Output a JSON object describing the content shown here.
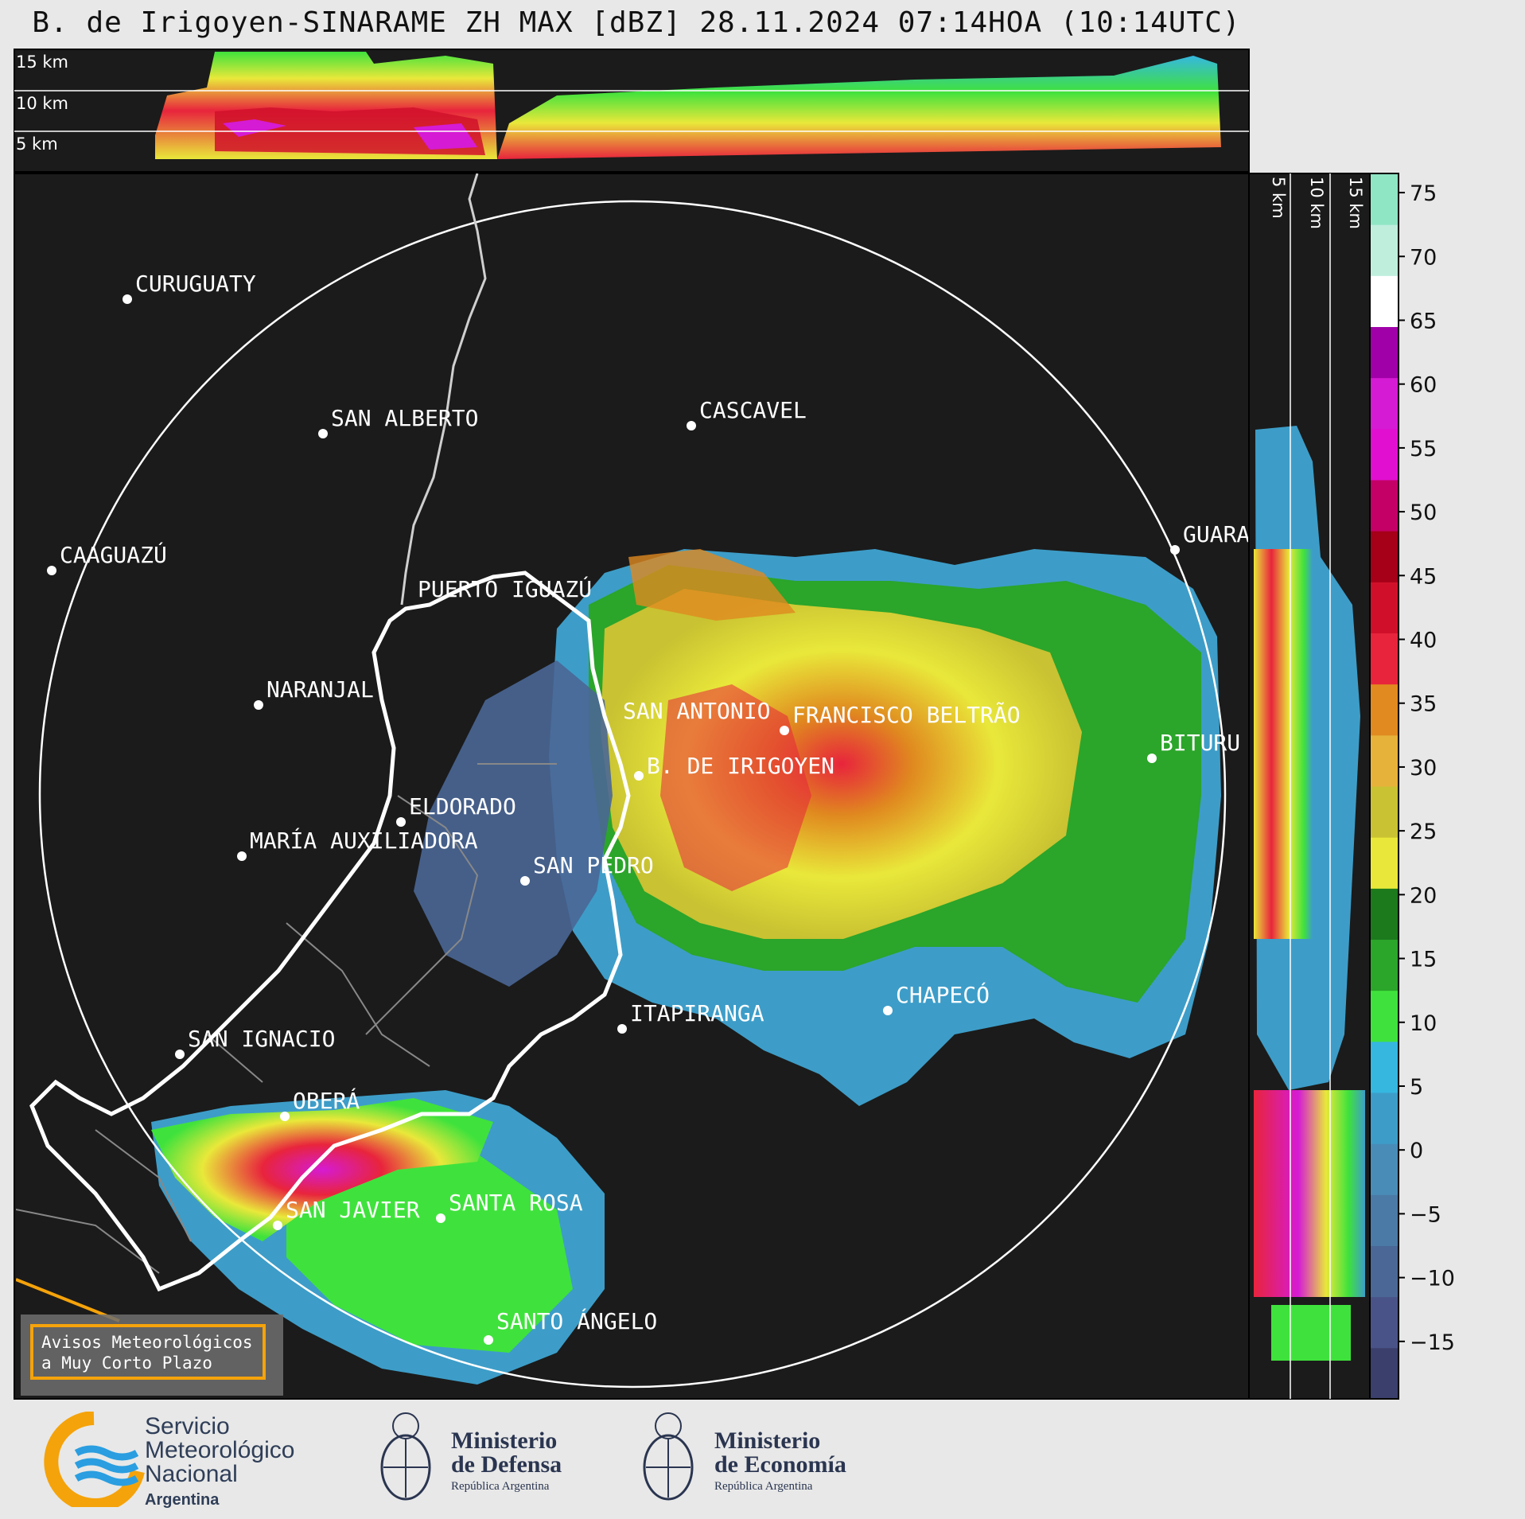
{
  "title": "B. de Irigoyen-SINARAME ZH MAX [dBZ] 28.11.2024 07:14HOA (10:14UTC)",
  "height_labels_top": [
    "15 km",
    "10 km",
    "5 km"
  ],
  "height_labels_side": [
    "5 km",
    "10 km",
    "15 km"
  ],
  "colorbar": {
    "ticks": [
      "75",
      "70",
      "65",
      "60",
      "55",
      "50",
      "45",
      "40",
      "35",
      "30",
      "25",
      "20",
      "15",
      "10",
      "5",
      "0",
      "−5",
      "−10",
      "−15"
    ]
  },
  "cities": [
    {
      "name": "CURUGUATY"
    },
    {
      "name": "SAN ALBERTO"
    },
    {
      "name": "CASCAVEL"
    },
    {
      "name": "CAAGUAZÚ"
    },
    {
      "name": "GUARA"
    },
    {
      "name": "PUERTO IGUAZÚ"
    },
    {
      "name": "NARANJAL"
    },
    {
      "name": "SAN ANTONIO"
    },
    {
      "name": "FRANCISCO BELTRÃO"
    },
    {
      "name": "BITURU"
    },
    {
      "name": "B. DE IRIGOYEN"
    },
    {
      "name": "ELDORADO"
    },
    {
      "name": "MARÍA AUXILIADORA"
    },
    {
      "name": "SAN PEDRO"
    },
    {
      "name": "CHAPECÓ"
    },
    {
      "name": "ITAPIRANGA"
    },
    {
      "name": "SAN IGNACIO"
    },
    {
      "name": "OBERÁ"
    },
    {
      "name": "SAN JAVIER"
    },
    {
      "name": "SANTA ROSA"
    },
    {
      "name": "SANTO ÁNGELO"
    }
  ],
  "aviso": {
    "line1": "Avisos Meteorológicos",
    "line2": "a Muy Corto Plazo"
  },
  "logos": {
    "smn": {
      "line1": "Servicio",
      "line2": "Meteorológico",
      "line3": "Nacional",
      "sub": "Argentina"
    },
    "defensa": {
      "line1": "Ministerio",
      "line2": "de Defensa",
      "sub": "República Argentina"
    },
    "economia": {
      "line1": "Ministerio",
      "line2": "de Economía",
      "sub": "República Argentina"
    }
  },
  "colors": {
    "background": "#1b1b1b",
    "page": "#e8e8e8",
    "scale": [
      "#3b3f6b",
      "#4a5388",
      "#4a6796",
      "#4b7aa6",
      "#4a8cb8",
      "#3d9dc8",
      "#35b7e0",
      "#3fe23c",
      "#2ba52a",
      "#1c7a1c",
      "#e9e83a",
      "#c9c232",
      "#e7b23a",
      "#e08a1f",
      "#e8243c",
      "#d0102a",
      "#a50018",
      "#c40066",
      "#e10fd0",
      "#d51bd3",
      "#a000a8",
      "#ffffff",
      "#bfeedd",
      "#8fe6c4"
    ]
  }
}
